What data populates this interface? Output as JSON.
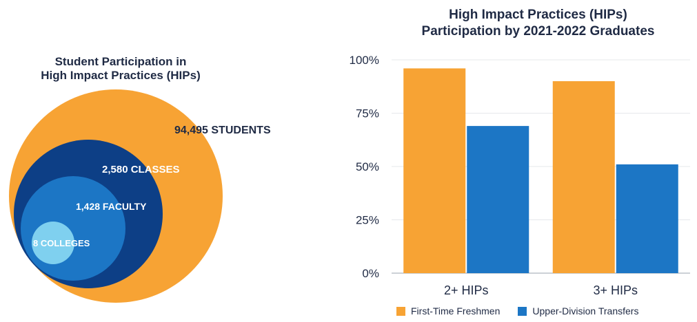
{
  "colors": {
    "orange": "#f7a334",
    "dark_navy": "#0d3f86",
    "mid_blue": "#1c76c5",
    "light_blue": "#7fd0ef",
    "title_text": "#1f2a44",
    "white": "#ffffff"
  },
  "left_chart": {
    "title_line1": "Student Participation in",
    "title_line2": "High Impact Practices (HIPs)",
    "labels": {
      "students": "94,495 STUDENTS",
      "classes": "2,580 CLASSES",
      "faculty": "1,428 FACULTY",
      "colleges": "8 COLLEGES"
    }
  },
  "chart_data": {
    "type": "bar",
    "title_line1": "High Impact Practices (HIPs)",
    "title_line2": "Participation by 2021-2022 Graduates",
    "categories": [
      "2+ HIPs",
      "3+ HIPs"
    ],
    "series": [
      {
        "name": "First-Time Freshmen",
        "color": "#f7a334",
        "values": [
          96,
          90
        ]
      },
      {
        "name": "Upper-Division Transfers",
        "color": "#1c76c5",
        "values": [
          69,
          51
        ]
      }
    ],
    "ylim": [
      0,
      100
    ],
    "yticks": [
      0,
      25,
      50,
      75,
      100
    ],
    "ytick_labels": [
      "0%",
      "25%",
      "50%",
      "75%",
      "100%"
    ],
    "grid": true,
    "legend_position": "bottom"
  }
}
